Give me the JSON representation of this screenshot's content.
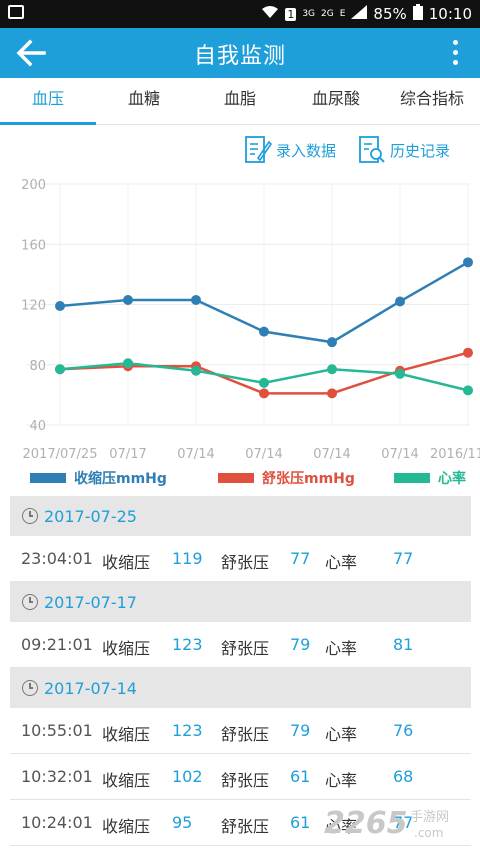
{
  "status_bar": {
    "battery_percent": "85%",
    "time": "10:10",
    "network_3g": "3G",
    "network_2g": "2G",
    "network_e": "E",
    "sim_label": "1"
  },
  "app_bar": {
    "title": "自我监测",
    "icons": {
      "back": "arrow-left-icon",
      "menu": "more-vertical-icon"
    }
  },
  "tabs": [
    {
      "label": "血压",
      "active": true
    },
    {
      "label": "血糖",
      "active": false
    },
    {
      "label": "血脂",
      "active": false
    },
    {
      "label": "血尿酸",
      "active": false
    },
    {
      "label": "综合指标",
      "active": false
    }
  ],
  "actions": {
    "enter_data": "录入数据",
    "history": "历史记录"
  },
  "colors": {
    "accent": "#1e9fda",
    "systolic": "#2f7fb5",
    "diastolic": "#e0503f",
    "heart_rate": "#24b894"
  },
  "chart_data": {
    "type": "line",
    "categories": [
      "2017/07/25",
      "07/17",
      "07/14",
      "07/14",
      "07/14",
      "07/14",
      "2016/11/"
    ],
    "ylim": [
      40,
      200
    ],
    "yticks": [
      40,
      80,
      120,
      160,
      200
    ],
    "grid": true,
    "legend_position": "bottom",
    "series": [
      {
        "name": "收缩压mmHg",
        "values": [
          119,
          123,
          123,
          102,
          95,
          122,
          148
        ]
      },
      {
        "name": "舒张压mmHg",
        "values": [
          77,
          79,
          79,
          61,
          61,
          76,
          88
        ]
      },
      {
        "name": "心率",
        "values": [
          77,
          81,
          76,
          68,
          77,
          74,
          63
        ]
      }
    ]
  },
  "records": {
    "labels": {
      "systolic": "收缩压",
      "diastolic": "舒张压",
      "heart_rate": "心率"
    },
    "groups": [
      {
        "date": "2017-07-25",
        "rows": [
          {
            "time": "23:04:01",
            "systolic": "119",
            "diastolic": "77",
            "heart_rate": "77"
          }
        ]
      },
      {
        "date": "2017-07-17",
        "rows": [
          {
            "time": "09:21:01",
            "systolic": "123",
            "diastolic": "79",
            "heart_rate": "81"
          }
        ]
      },
      {
        "date": "2017-07-14",
        "rows": [
          {
            "time": "10:55:01",
            "systolic": "123",
            "diastolic": "79",
            "heart_rate": "76"
          },
          {
            "time": "10:32:01",
            "systolic": "102",
            "diastolic": "61",
            "heart_rate": "68"
          },
          {
            "time": "10:24:01",
            "systolic": "95",
            "diastolic": "61",
            "heart_rate": "77"
          }
        ]
      }
    ]
  },
  "watermark": {
    "brand": "2265",
    "suffix": "手游网",
    "domain": ".com"
  }
}
